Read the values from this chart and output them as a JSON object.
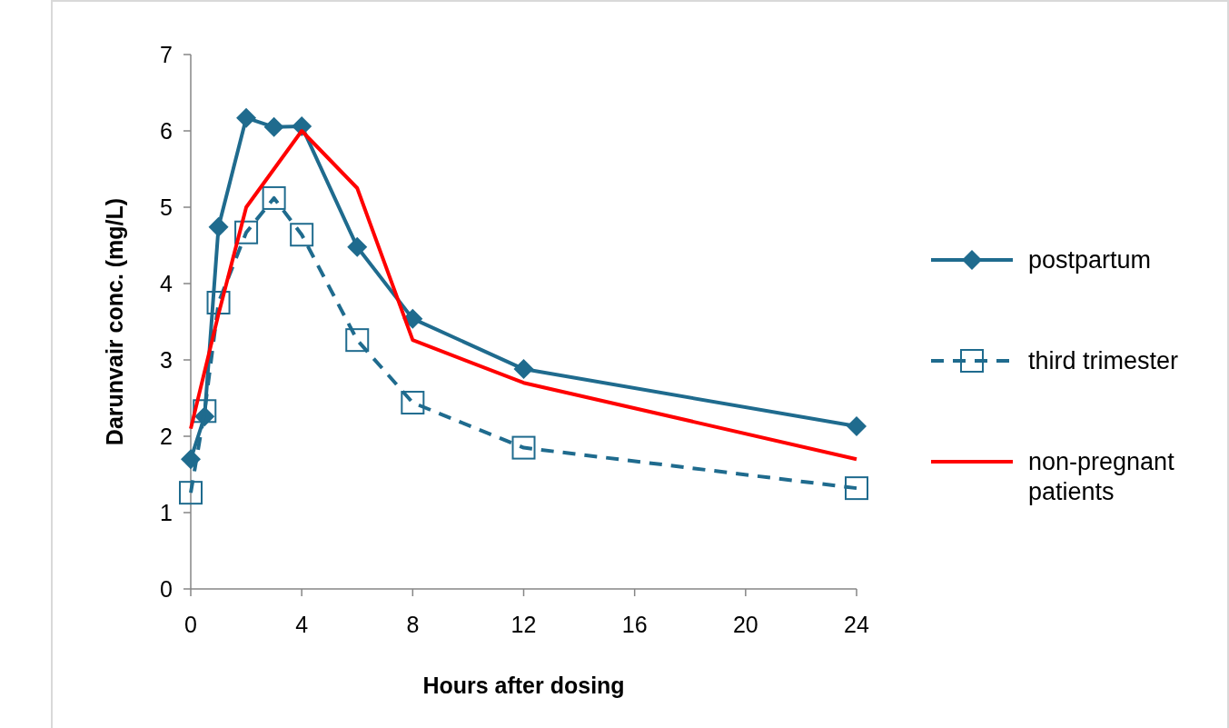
{
  "chart_data": {
    "type": "line",
    "xlabel": "Hours after dosing",
    "ylabel": "Darunvair conc. (mg/L)",
    "xlim": [
      0,
      24
    ],
    "ylim": [
      0,
      7
    ],
    "xticks": [
      0,
      4,
      8,
      12,
      16,
      20,
      24
    ],
    "yticks": [
      0,
      1,
      2,
      3,
      4,
      5,
      6,
      7
    ],
    "grid": false,
    "legend": "right",
    "series": [
      {
        "name": "postpartum",
        "color": "#1f6b8e",
        "marker": "diamond",
        "line_style": "solid",
        "x": [
          0,
          0.5,
          1,
          2,
          3,
          4,
          6,
          8,
          12,
          24
        ],
        "values": [
          1.7,
          2.26,
          4.74,
          6.17,
          6.05,
          6.06,
          4.48,
          3.54,
          2.88,
          2.13
        ]
      },
      {
        "name": "third trimester",
        "color": "#1f6b8e",
        "marker": "square",
        "line_style": "dashed",
        "x": [
          0,
          0.5,
          1,
          2,
          3,
          4,
          6,
          8,
          12,
          24
        ],
        "values": [
          1.26,
          2.33,
          3.75,
          4.67,
          5.12,
          4.64,
          3.26,
          2.44,
          1.85,
          1.32
        ]
      },
      {
        "name": "non-pregnant patients",
        "color": "#ff0000",
        "marker": "none",
        "line_style": "solid",
        "x": [
          0,
          1,
          2,
          4,
          6,
          8,
          12,
          24
        ],
        "values": [
          2.1,
          3.6,
          5.0,
          6.0,
          5.25,
          3.26,
          2.7,
          1.7
        ]
      }
    ]
  }
}
